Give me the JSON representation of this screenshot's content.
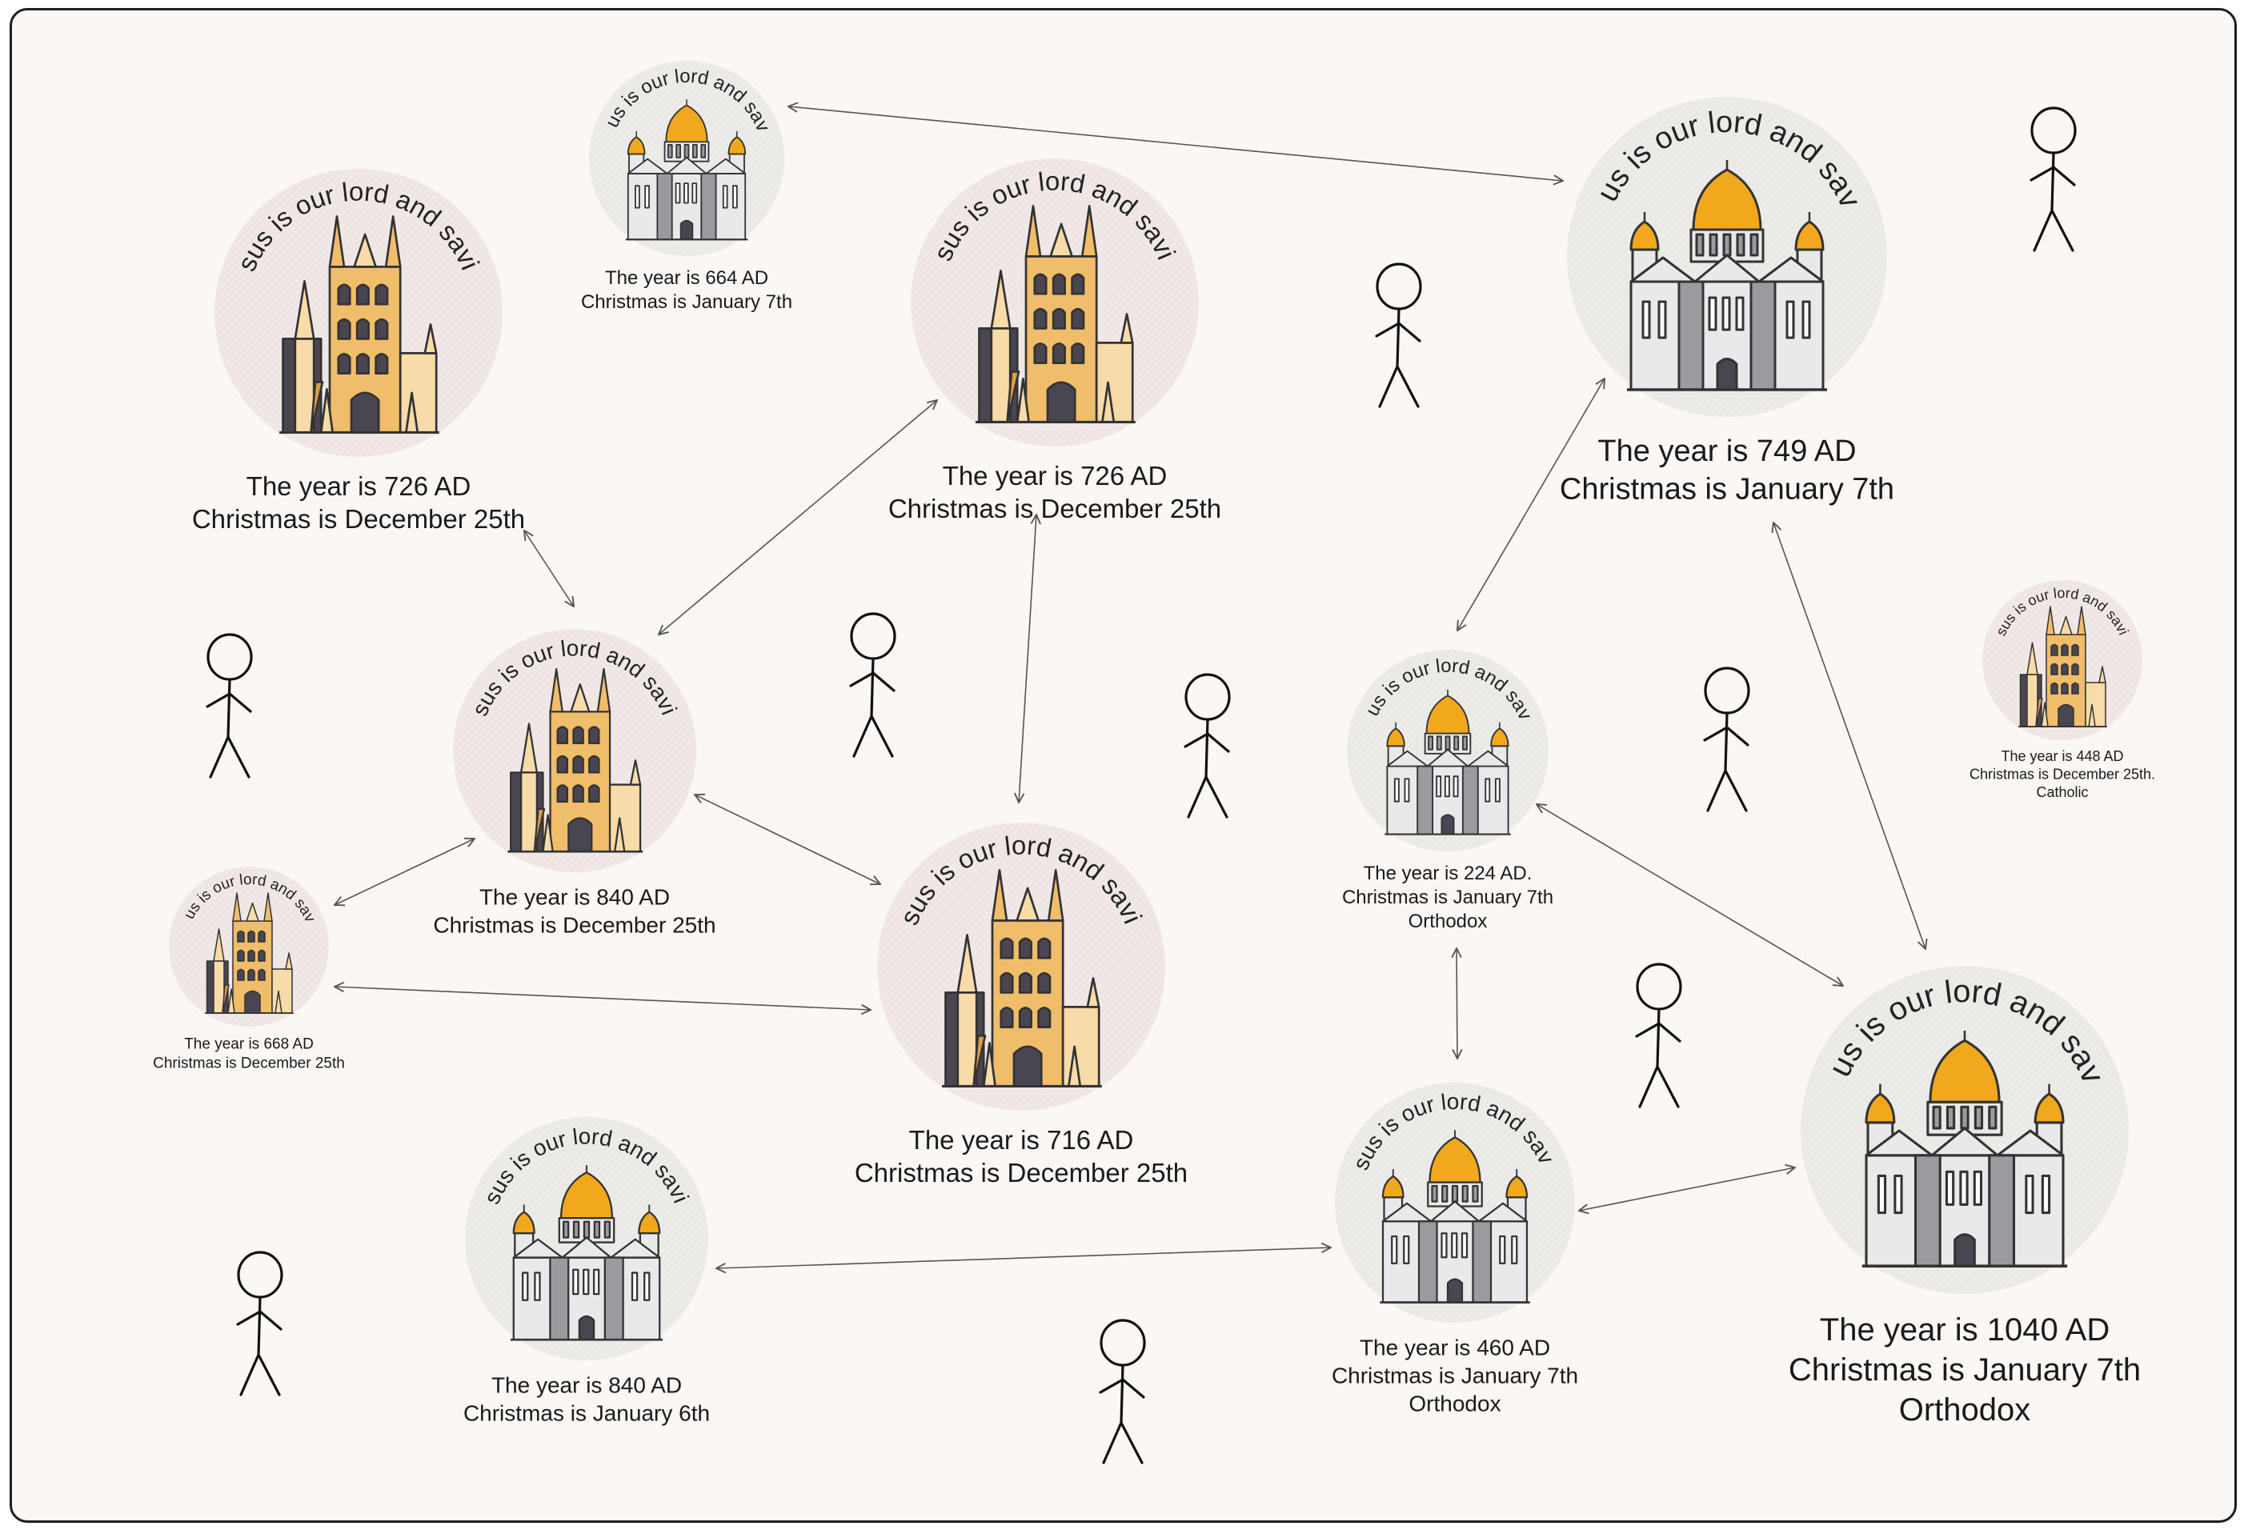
{
  "motto": "Jesus is our lord and savior.",
  "colors": {
    "gold": "#f0bd6b",
    "gold_light": "#f7dba8",
    "gold_dark": "#dd9d45",
    "dark": "#4a4651",
    "onion": "#f2a81c",
    "grey_body": "#e9e9ec",
    "grey_mid": "#9b9b9f",
    "circle_catholic": "#f0e8e6",
    "circle_orthodox": "#ecebe8",
    "outline": "#333333",
    "background": "#fbf7f4"
  },
  "nodes": [
    {
      "id": "n726a",
      "style": "gothic",
      "lines": [
        "The year is 726 AD",
        "Christmas is December 25th"
      ]
    },
    {
      "id": "n664",
      "style": "orthodox",
      "lines": [
        "The year is 664 AD",
        "Christmas is January 7th"
      ]
    },
    {
      "id": "n726b",
      "style": "gothic",
      "lines": [
        "The year is 726 AD",
        "Christmas is December 25th"
      ]
    },
    {
      "id": "n749",
      "style": "orthodox",
      "lines": [
        "The year is 749 AD",
        "Christmas is January 7th"
      ]
    },
    {
      "id": "n840a",
      "style": "gothic",
      "lines": [
        "The year is 840 AD",
        "Christmas is December 25th"
      ]
    },
    {
      "id": "n448",
      "style": "gothic",
      "lines": [
        "The year is 448 AD",
        "Christmas is December 25th.",
        "Catholic"
      ]
    },
    {
      "id": "n224",
      "style": "orthodox",
      "lines": [
        "The year is 224 AD.",
        "Christmas is January 7th",
        "Orthodox"
      ]
    },
    {
      "id": "n668",
      "style": "gothic",
      "lines": [
        "The year is 668 AD",
        "Christmas is December 25th"
      ]
    },
    {
      "id": "n716",
      "style": "gothic",
      "lines": [
        "The year is 716 AD",
        "Christmas is December 25th"
      ]
    },
    {
      "id": "n1040",
      "style": "orthodox",
      "lines": [
        "The year is 1040 AD",
        "Christmas is January 7th",
        "Orthodox"
      ]
    },
    {
      "id": "n840b",
      "style": "orthodox",
      "lines": [
        "The year is 840 AD",
        "Christmas is January 6th"
      ]
    },
    {
      "id": "n460",
      "style": "orthodox",
      "lines": [
        "The year is 460 AD",
        "Christmas is January 7th",
        "Orthodox"
      ]
    }
  ],
  "edges": [
    [
      "n664",
      "n749"
    ],
    [
      "n726a",
      "n840a"
    ],
    [
      "n840a",
      "n726b"
    ],
    [
      "n726b",
      "n716"
    ],
    [
      "n840a",
      "n668"
    ],
    [
      "n840a",
      "n716"
    ],
    [
      "n668",
      "n716"
    ],
    [
      "n749",
      "n224"
    ],
    [
      "n749",
      "n1040"
    ],
    [
      "n224",
      "n1040"
    ],
    [
      "n224",
      "n460"
    ],
    [
      "n460",
      "n1040"
    ],
    [
      "n840b",
      "n460"
    ]
  ],
  "stick_figures": 9
}
